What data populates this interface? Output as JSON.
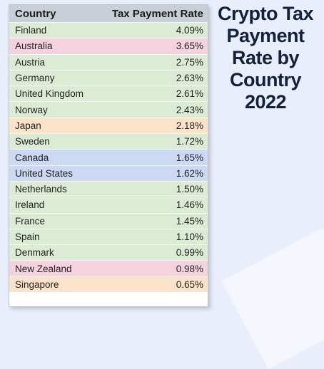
{
  "title_lines": [
    "Crypto Tax",
    "Payment",
    "Rate by",
    "Country",
    "2022"
  ],
  "colors": {
    "green": "#dcebd3",
    "pink": "#f4d3df",
    "orange": "#fbe3ca",
    "blue": "#cbd9f3",
    "header": "#c8cfd8",
    "title": "#14213d"
  },
  "chart_data": {
    "type": "table",
    "columns": [
      "Country",
      "Tax Payment Rate"
    ],
    "rows": [
      {
        "country": "Finland",
        "rate": "4.09%",
        "color": "green"
      },
      {
        "country": "Australia",
        "rate": "3.65%",
        "color": "pink"
      },
      {
        "country": "Austria",
        "rate": "2.75%",
        "color": "green"
      },
      {
        "country": "Germany",
        "rate": "2.63%",
        "color": "green"
      },
      {
        "country": "United Kingdom",
        "rate": "2.61%",
        "color": "green"
      },
      {
        "country": "Norway",
        "rate": "2.43%",
        "color": "green"
      },
      {
        "country": "Japan",
        "rate": "2.18%",
        "color": "orange"
      },
      {
        "country": "Sweden",
        "rate": "1.72%",
        "color": "green"
      },
      {
        "country": "Canada",
        "rate": "1.65%",
        "color": "blue"
      },
      {
        "country": "United States",
        "rate": "1.62%",
        "color": "blue"
      },
      {
        "country": "Netherlands",
        "rate": "1.50%",
        "color": "green"
      },
      {
        "country": "Ireland",
        "rate": "1.46%",
        "color": "green"
      },
      {
        "country": "France",
        "rate": "1.45%",
        "color": "green"
      },
      {
        "country": "Spain",
        "rate": "1.10%",
        "color": "green"
      },
      {
        "country": "Denmark",
        "rate": "0.99%",
        "color": "green"
      },
      {
        "country": "New Zealand",
        "rate": "0.98%",
        "color": "pink"
      },
      {
        "country": "Singapore",
        "rate": "0.65%",
        "color": "orange"
      }
    ]
  }
}
